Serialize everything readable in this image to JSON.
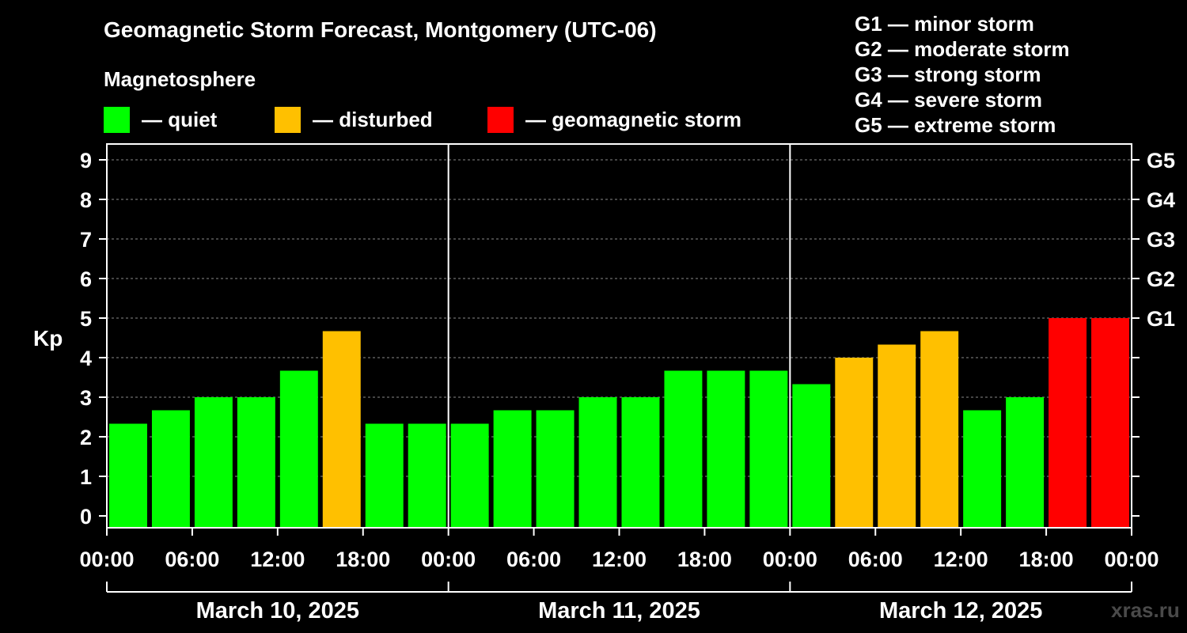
{
  "chart_data": {
    "type": "bar",
    "title": "Geomagnetic Storm Forecast, Montgomery (UTC-06)",
    "ylabel": "Kp",
    "ylim": [
      0,
      9
    ],
    "yticks": [
      "0",
      "1",
      "2",
      "3",
      "4",
      "5",
      "6",
      "7",
      "8",
      "9"
    ],
    "right_axis_labels": [
      {
        "kp": 5,
        "label": "G1"
      },
      {
        "kp": 6,
        "label": "G2"
      },
      {
        "kp": 7,
        "label": "G3"
      },
      {
        "kp": 8,
        "label": "G4"
      },
      {
        "kp": 9,
        "label": "G5"
      }
    ],
    "xtick_labels": [
      "00:00",
      "06:00",
      "12:00",
      "18:00",
      "00:00",
      "06:00",
      "12:00",
      "18:00",
      "00:00",
      "06:00",
      "12:00",
      "18:00",
      "00:00"
    ],
    "day_labels": [
      "March 10, 2025",
      "March 11, 2025",
      "March 12, 2025"
    ],
    "grid": "horizontal dashed",
    "colors": {
      "quiet": "#00ff00",
      "disturbed": "#ffc000",
      "storm": "#ff0000"
    },
    "values": [
      2.33,
      2.67,
      3.0,
      3.0,
      3.67,
      4.67,
      2.33,
      2.33,
      2.33,
      2.67,
      2.67,
      3.0,
      3.0,
      3.67,
      3.67,
      3.67,
      3.33,
      4.0,
      4.33,
      4.67,
      2.67,
      3.0,
      5.0,
      5.0
    ],
    "levels": [
      "quiet",
      "quiet",
      "quiet",
      "quiet",
      "quiet",
      "disturbed",
      "quiet",
      "quiet",
      "quiet",
      "quiet",
      "quiet",
      "quiet",
      "quiet",
      "quiet",
      "quiet",
      "quiet",
      "quiet",
      "disturbed",
      "disturbed",
      "disturbed",
      "quiet",
      "quiet",
      "storm",
      "storm"
    ]
  },
  "legend": {
    "heading": "Magnetosphere",
    "quiet_label": "— quiet",
    "disturbed_label": "— disturbed",
    "storm_label": "— geomagnetic storm"
  },
  "scale": [
    "G1 — minor storm",
    "G2 — moderate storm",
    "G3 — strong storm",
    "G4 — severe storm",
    "G5 — extreme storm"
  ],
  "watermark": "xras.ru"
}
